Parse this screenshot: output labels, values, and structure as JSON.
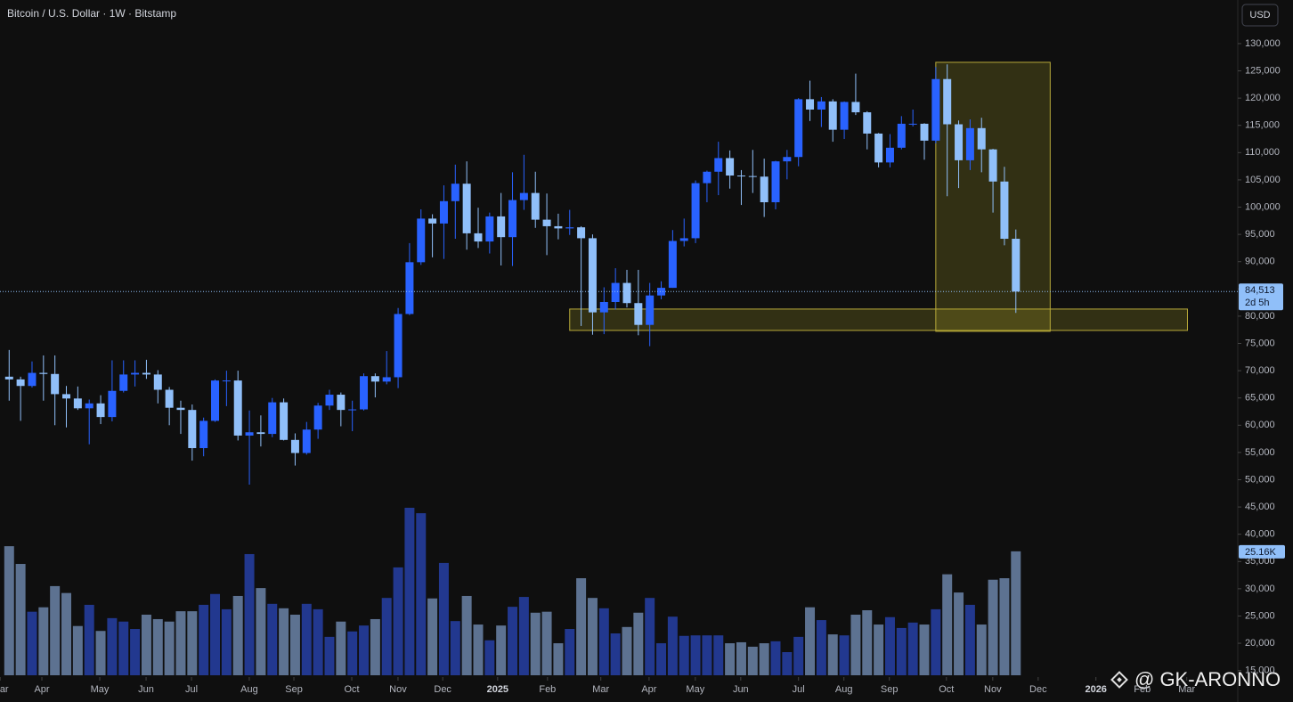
{
  "chart_data": {
    "type": "candlestick",
    "title": "Bitcoin / U.S. Dollar · 1W · Bitstamp",
    "currency": "USD",
    "categories": [
      null,
      null,
      null,
      null,
      null,
      null,
      null,
      null,
      null,
      null,
      null,
      null,
      null,
      null,
      null,
      null,
      null,
      null,
      null,
      null,
      null,
      null,
      null,
      null,
      null,
      null,
      null,
      null,
      null,
      null,
      null,
      null,
      null,
      null,
      null,
      null,
      null,
      null,
      null,
      null,
      null,
      null,
      null,
      null,
      null,
      null,
      null,
      null,
      null,
      null,
      null,
      null,
      null,
      null,
      null,
      null,
      null,
      null,
      null,
      null,
      null,
      null,
      null,
      null,
      null,
      null,
      null,
      null,
      null,
      null,
      null,
      null,
      null,
      null,
      null,
      null,
      null,
      null,
      null,
      null,
      null,
      null,
      null,
      null,
      null,
      null,
      null,
      null,
      null
    ],
    "open": [
      68900,
      68400,
      67200,
      69600,
      69400,
      65700,
      64900,
      63100,
      64000,
      61500,
      66300,
      69300,
      69600,
      69300,
      66500,
      63200,
      62800,
      55800,
      60800,
      68200,
      68200,
      58100,
      58700,
      58400,
      64200,
      57300,
      54900,
      59200,
      63600,
      65600,
      62800,
      62900,
      69000,
      68000,
      68800,
      80400,
      89900,
      97900,
      97000,
      101100,
      104300,
      95200,
      93700,
      98300,
      94500,
      101300,
      102600,
      97700,
      96500,
      96100,
      96300,
      94300,
      80700,
      82600,
      86100,
      82400,
      78400,
      83800,
      85200,
      93800,
      94300,
      104400,
      106500,
      109000,
      105800,
      105700,
      105600,
      100900,
      108400,
      109200,
      119800,
      117900,
      119400,
      114200,
      119300,
      117400,
      113500,
      108200,
      110900,
      115300,
      115300,
      112200,
      123500,
      115200,
      108600,
      114500,
      110600,
      104700,
      94200
    ],
    "high": [
      73800,
      68900,
      71700,
      72800,
      72800,
      67200,
      67100,
      64700,
      65500,
      71900,
      71900,
      71900,
      72000,
      70100,
      67000,
      64500,
      63800,
      61400,
      68400,
      70000,
      70000,
      62700,
      61800,
      65000,
      64900,
      58500,
      60600,
      64100,
      66500,
      66000,
      64500,
      69500,
      69500,
      73600,
      81500,
      93400,
      99600,
      98700,
      104000,
      107800,
      108400,
      99900,
      99000,
      102600,
      106400,
      109600,
      106500,
      102500,
      98800,
      99500,
      96500,
      95000,
      85300,
      88800,
      88500,
      88500,
      86100,
      86400,
      95800,
      97900,
      104900,
      106700,
      112000,
      110400,
      106800,
      110500,
      108900,
      108500,
      110500,
      120000,
      123200,
      120200,
      119800,
      119400,
      124500,
      117600,
      113600,
      113400,
      116700,
      117900,
      115400,
      125700,
      126200,
      115900,
      116100,
      116400,
      110700,
      107400,
      95900
    ],
    "low": [
      64500,
      60800,
      66900,
      64500,
      60000,
      59600,
      62800,
      56500,
      60200,
      60700,
      66000,
      67100,
      68500,
      64000,
      60000,
      58400,
      53500,
      54300,
      60600,
      63500,
      57200,
      49100,
      56100,
      57800,
      57200,
      52600,
      54600,
      57500,
      62800,
      59800,
      58900,
      62700,
      65100,
      67500,
      66800,
      80200,
      89400,
      90800,
      90500,
      94200,
      92200,
      92500,
      91500,
      89300,
      89200,
      99500,
      96200,
      91200,
      94100,
      94900,
      78200,
      76600,
      76700,
      81200,
      81600,
      76500,
      74500,
      83100,
      85200,
      92800,
      93400,
      100900,
      102200,
      103400,
      100400,
      102600,
      98200,
      99600,
      105100,
      107500,
      115800,
      114700,
      112000,
      112500,
      116900,
      110600,
      107300,
      107300,
      110600,
      114800,
      108700,
      111700,
      102000,
      103500,
      106800,
      106400,
      99000,
      93000,
      80600
    ],
    "close": [
      68400,
      67200,
      69600,
      69400,
      65700,
      64900,
      63100,
      64000,
      61500,
      66300,
      69300,
      69600,
      69300,
      66500,
      63200,
      62800,
      55800,
      60800,
      68200,
      68200,
      58100,
      58700,
      58400,
      64200,
      57300,
      54900,
      59200,
      63600,
      65600,
      62800,
      62900,
      69000,
      68000,
      68800,
      80400,
      89900,
      97900,
      97000,
      101100,
      104300,
      95200,
      93700,
      98300,
      94500,
      101300,
      102600,
      97700,
      96500,
      96100,
      96300,
      94300,
      80700,
      82600,
      86100,
      82400,
      78400,
      83800,
      85200,
      93800,
      94300,
      104400,
      106500,
      109000,
      105800,
      105700,
      105600,
      100900,
      108400,
      109200,
      119800,
      117900,
      119400,
      114200,
      119300,
      117400,
      113500,
      108200,
      110900,
      115300,
      115300,
      112200,
      123500,
      115200,
      108600,
      114500,
      110600,
      104700,
      94200,
      84513
    ],
    "volume": [
      26200,
      22600,
      12900,
      13800,
      18100,
      16700,
      10000,
      14300,
      9000,
      11600,
      10900,
      9400,
      12300,
      11400,
      10900,
      13000,
      13000,
      14300,
      16500,
      13400,
      16100,
      24600,
      17700,
      14500,
      13600,
      12300,
      14500,
      13400,
      7800,
      10900,
      8900,
      10100,
      11400,
      15700,
      21900,
      34000,
      32900,
      15600,
      22800,
      11000,
      16100,
      10300,
      7100,
      10100,
      13900,
      15900,
      12700,
      12900,
      6500,
      9400,
      19700,
      15700,
      13600,
      8500,
      9800,
      12700,
      15700,
      6500,
      11900,
      8000,
      8100,
      8100,
      8100,
      6500,
      6700,
      5800,
      6500,
      6900,
      4700,
      7800,
      13800,
      11200,
      8300,
      8100,
      12300,
      13200,
      10300,
      11800,
      9600,
      10700,
      10300,
      13400,
      20500,
      16800,
      14300,
      10300,
      19400,
      19700,
      25160
    ],
    "volume_last_label": "25.16K",
    "up_color": "#2962ff",
    "down_color": "#90bff9",
    "volume_up_color": "#22388f",
    "volume_down_color": "#5d7291",
    "last_price": {
      "value": 84513,
      "label": "84,513"
    },
    "countdown": "2d 5h",
    "xlim": [
      -0.8,
      107.4
    ],
    "ylim": [
      13800,
      138000
    ],
    "vlim": [
      0,
      100000
    ],
    "grid": false,
    "xticks": [
      {
        "value": -0.79,
        "label": "Mar"
      },
      {
        "value": 2.86,
        "label": "Apr"
      },
      {
        "value": 7.92,
        "label": "May"
      },
      {
        "value": 11.97,
        "label": "Jun"
      },
      {
        "value": 15.94,
        "label": "Jul"
      },
      {
        "value": 20.99,
        "label": "Aug"
      },
      {
        "value": 24.89,
        "label": "Sep"
      },
      {
        "value": 29.95,
        "label": "Oct"
      },
      {
        "value": 33.99,
        "label": "Nov"
      },
      {
        "value": 37.9,
        "label": "Dec"
      },
      {
        "value": 42.7,
        "label": "2025"
      },
      {
        "value": 47.06,
        "label": "Feb"
      },
      {
        "value": 51.72,
        "label": "Mar"
      },
      {
        "value": 55.94,
        "label": "Apr"
      },
      {
        "value": 59.98,
        "label": "May"
      },
      {
        "value": 63.95,
        "label": "Jun"
      },
      {
        "value": 69.0,
        "label": "Jul"
      },
      {
        "value": 72.97,
        "label": "Aug"
      },
      {
        "value": 76.94,
        "label": "Sep"
      },
      {
        "value": 81.93,
        "label": "Oct"
      },
      {
        "value": 85.98,
        "label": "Nov"
      },
      {
        "value": 89.95,
        "label": "Dec"
      },
      {
        "value": 95.0,
        "label": "2026"
      },
      {
        "value": 99.05,
        "label": "Feb"
      },
      {
        "value": 102.94,
        "label": "Mar"
      }
    ],
    "yticks": [
      {
        "value": 15000,
        "label": "15,000"
      },
      {
        "value": 20000,
        "label": "20,000"
      },
      {
        "value": 25000,
        "label": "25,000"
      },
      {
        "value": 30000,
        "label": "30,000"
      },
      {
        "value": 35000,
        "label": "35,000"
      },
      {
        "value": 40000,
        "label": "40,000"
      },
      {
        "value": 45000,
        "label": "45,000"
      },
      {
        "value": 50000,
        "label": "50,000"
      },
      {
        "value": 55000,
        "label": "55,000"
      },
      {
        "value": 60000,
        "label": "60,000"
      },
      {
        "value": 65000,
        "label": "65,000"
      },
      {
        "value": 70000,
        "label": "70,000"
      },
      {
        "value": 75000,
        "label": "75,000"
      },
      {
        "value": 80000,
        "label": "80,000"
      },
      {
        "value": 85000,
        "label": "85,000"
      },
      {
        "value": 90000,
        "label": "90,000"
      },
      {
        "value": 95000,
        "label": "95,000"
      },
      {
        "value": 100000,
        "label": "100,000"
      },
      {
        "value": 105000,
        "label": "105,000"
      },
      {
        "value": 110000,
        "label": "110,000"
      },
      {
        "value": 115000,
        "label": "115,000"
      },
      {
        "value": 120000,
        "label": "120,000"
      },
      {
        "value": 125000,
        "label": "125,000"
      },
      {
        "value": 130000,
        "label": "130,000"
      }
    ],
    "zones": [
      {
        "x0": 49.0,
        "x1": 103.0,
        "y0": 77386,
        "y1": 81307
      },
      {
        "x0": 81.0,
        "x1": 91.0,
        "y0": 77222,
        "y1": 126569
      }
    ],
    "watermark": "@ GK-ARONNO"
  }
}
